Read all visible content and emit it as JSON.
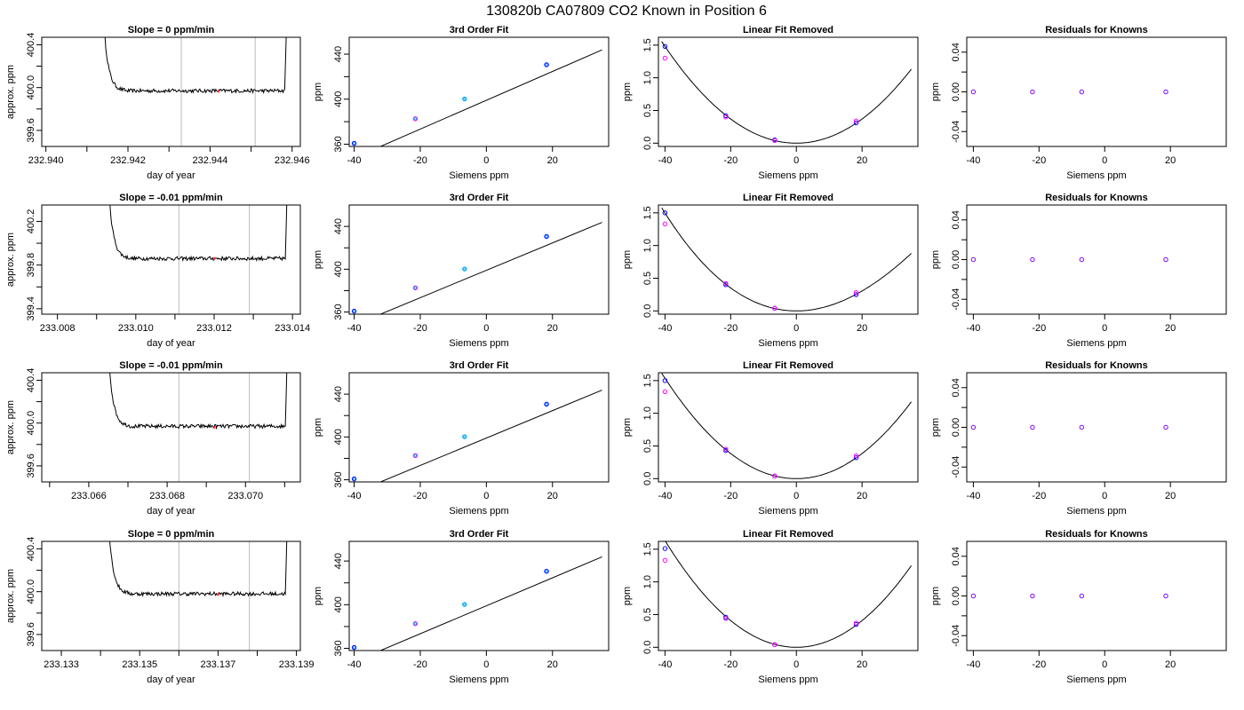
{
  "figure": {
    "title": "130820b      CA07809    CO2 Known in Position  6"
  },
  "chart_data": [
    {
      "row": 1,
      "col": 1,
      "type": "line",
      "title": "Slope =  0  ppm/min",
      "xlabel": "day of year",
      "ylabel": "approx. ppm",
      "xlim": [
        232.9399,
        232.9462
      ],
      "ylim": [
        399.45,
        400.47
      ],
      "xticks": [
        232.94,
        232.941,
        232.942,
        232.943,
        232.944,
        232.945,
        232.946
      ],
      "xticklabels": [
        "232.940",
        "",
        "232.942",
        "",
        "232.944",
        "",
        "232.946"
      ],
      "yticks": [
        399.6,
        399.8,
        400.0,
        400.2,
        400.4
      ],
      "yticklabels": [
        "399.6",
        "",
        "400.0",
        "",
        "400.4"
      ],
      "trace": {
        "x_start": 232.9414,
        "x_end": 232.9459,
        "baseline": 399.97,
        "rise_top": 400.47
      },
      "vlines": [
        232.9433,
        232.9451
      ],
      "marker": {
        "x": 232.9442,
        "y": 399.965,
        "color": "#ff3333"
      }
    },
    {
      "row": 1,
      "col": 2,
      "type": "scatter",
      "title": "3rd Order Fit",
      "xlabel": "Siemens ppm",
      "ylabel": "ppm",
      "xlim": [
        -41.5,
        37
      ],
      "ylim": [
        358,
        455
      ],
      "xticks": [
        -40,
        -20,
        0,
        20
      ],
      "xticklabels": [
        "-40",
        "-20",
        "0",
        "20"
      ],
      "yticks": [
        360,
        380,
        400,
        420,
        440
      ],
      "yticklabels": [
        "360",
        "",
        "400",
        "",
        "440"
      ],
      "points_x": [
        -40.0,
        -21.5,
        -6.6,
        18.2
      ],
      "points_y": [
        360.8,
        382.6,
        400.2,
        430.6
      ],
      "fit": {
        "a0": 399.0,
        "a1": 1.28,
        "x_from": -41,
        "x_to": 35
      },
      "point_colors": [
        "#0000ff",
        "#ff00ff",
        "#00aaff"
      ]
    },
    {
      "row": 1,
      "col": 3,
      "type": "scatter",
      "title": "Linear Fit Removed",
      "xlabel": "Siemens ppm",
      "ylabel": "ppm",
      "xlim": [
        -42,
        37
      ],
      "ylim": [
        -0.05,
        1.62
      ],
      "xticks": [
        -40,
        -20,
        0,
        20
      ],
      "xticklabels": [
        "-40",
        "-20",
        "0",
        "20"
      ],
      "yticks": [
        0.0,
        0.5,
        1.0,
        1.5
      ],
      "yticklabels": [
        "0.0",
        "0.5",
        "1.0",
        "1.5"
      ],
      "points_x": [
        -40.0,
        -21.5,
        -6.6,
        18.2
      ],
      "points_y": [
        1.48,
        0.42,
        0.05,
        0.31
      ],
      "points2_y": [
        1.3,
        0.4,
        0.04,
        0.34
      ],
      "curve": {
        "a": 0.000925,
        "a3": 0.0,
        "x_from": -41,
        "x_to": 35
      }
    },
    {
      "row": 1,
      "col": 4,
      "type": "scatter",
      "title": "Residuals for Knowns",
      "xlabel": "Siemens ppm",
      "ylabel": "ppm",
      "xlim": [
        -42,
        37
      ],
      "ylim": [
        -0.055,
        0.055
      ],
      "xticks": [
        -40,
        -20,
        0,
        20
      ],
      "xticklabels": [
        "-40",
        "-20",
        "0",
        "20"
      ],
      "yticks": [
        -0.04,
        -0.02,
        0.0,
        0.02,
        0.04
      ],
      "yticklabels": [
        "-0.04",
        "",
        "0.00",
        "",
        "0.04"
      ],
      "points_x": [
        -40.0,
        -22.0,
        -7.0,
        18.6
      ],
      "points_y": [
        0,
        0,
        0,
        0
      ]
    },
    {
      "row": 2,
      "col": 1,
      "type": "line",
      "title": "Slope =  -0.01  ppm/min",
      "xlabel": "day of year",
      "ylabel": "approx. ppm",
      "xlim": [
        233.0076,
        233.0142
      ],
      "ylim": [
        399.35,
        400.35
      ],
      "xticks": [
        233.008,
        233.009,
        233.01,
        233.011,
        233.012,
        233.013,
        233.014
      ],
      "xticklabels": [
        "233.008",
        "",
        "233.010",
        "",
        "233.012",
        "",
        "233.014"
      ],
      "yticks": [
        399.4,
        399.6,
        399.8,
        400.0,
        400.2
      ],
      "yticklabels": [
        "399.4",
        "",
        "399.8",
        "",
        "400.2"
      ],
      "trace": {
        "x_start": 233.0093,
        "x_end": 233.0139,
        "baseline": 399.86,
        "rise_top": 400.35
      },
      "vlines": [
        233.0111,
        233.0129
      ],
      "marker": {
        "x": 233.012,
        "y": 399.86,
        "color": "#ff3333"
      }
    },
    {
      "row": 2,
      "col": 2,
      "type": "scatter",
      "title": "3rd Order Fit",
      "xlabel": "Siemens ppm",
      "ylabel": "ppm",
      "xlim": [
        -41.5,
        37
      ],
      "ylim": [
        358,
        460
      ],
      "xticks": [
        -40,
        -20,
        0,
        20
      ],
      "xticklabels": [
        "-40",
        "-20",
        "0",
        "20"
      ],
      "yticks": [
        360,
        380,
        400,
        420,
        440
      ],
      "yticklabels": [
        "360",
        "",
        "400",
        "",
        "440"
      ],
      "points_x": [
        -40.0,
        -21.5,
        -6.6,
        18.2
      ],
      "points_y": [
        360.8,
        382.6,
        400.2,
        430.6
      ],
      "fit": {
        "a0": 399.0,
        "a1": 1.28,
        "x_from": -41,
        "x_to": 35
      },
      "point_colors": [
        "#0000ff",
        "#ff00ff",
        "#00aaff"
      ]
    },
    {
      "row": 2,
      "col": 3,
      "type": "scatter",
      "title": "Linear Fit Removed",
      "xlabel": "Siemens ppm",
      "ylabel": "ppm",
      "xlim": [
        -42,
        37
      ],
      "ylim": [
        -0.05,
        1.62
      ],
      "xticks": [
        -40,
        -20,
        0,
        20
      ],
      "xticklabels": [
        "-40",
        "-20",
        "0",
        "20"
      ],
      "yticks": [
        0.0,
        0.5,
        1.0,
        1.5
      ],
      "yticklabels": [
        "0.0",
        "0.5",
        "1.0",
        "1.5"
      ],
      "points_x": [
        -40.0,
        -21.5,
        -6.6,
        18.2
      ],
      "points_y": [
        1.5,
        0.4,
        0.04,
        0.25
      ],
      "points2_y": [
        1.33,
        0.42,
        0.04,
        0.28
      ],
      "curve": {
        "a": 0.00082,
        "a3": -2.9e-06,
        "x_from": -41,
        "x_to": 35
      }
    },
    {
      "row": 2,
      "col": 4,
      "type": "scatter",
      "title": "Residuals for Knowns",
      "xlabel": "Siemens ppm",
      "ylabel": "ppm",
      "xlim": [
        -42,
        37
      ],
      "ylim": [
        -0.055,
        0.055
      ],
      "xticks": [
        -40,
        -20,
        0,
        20
      ],
      "xticklabels": [
        "-40",
        "-20",
        "0",
        "20"
      ],
      "yticks": [
        -0.04,
        -0.02,
        0.0,
        0.02,
        0.04
      ],
      "yticklabels": [
        "-0.04",
        "",
        "0.00",
        "",
        "0.04"
      ],
      "points_x": [
        -40.0,
        -22.0,
        -7.0,
        18.6
      ],
      "points_y": [
        0,
        0,
        0,
        0
      ]
    },
    {
      "row": 3,
      "col": 1,
      "type": "line",
      "title": "Slope =  -0.01  ppm/min",
      "xlabel": "day of year",
      "ylabel": "approx. ppm",
      "xlim": [
        233.0648,
        233.0714
      ],
      "ylim": [
        399.45,
        400.47
      ],
      "xticks": [
        233.065,
        233.066,
        233.067,
        233.068,
        233.069,
        233.07,
        233.071
      ],
      "xticklabels": [
        "",
        "233.066",
        "",
        "233.068",
        "",
        "233.070",
        ""
      ],
      "yticks": [
        399.6,
        399.8,
        400.0,
        400.2,
        400.4
      ],
      "yticklabels": [
        "399.6",
        "",
        "400.0",
        "",
        "400.4"
      ],
      "trace": {
        "x_start": 233.0665,
        "x_end": 233.0711,
        "baseline": 399.97,
        "rise_top": 400.47
      },
      "vlines": [
        233.0683,
        233.0701
      ],
      "marker": {
        "x": 233.0692,
        "y": 399.96,
        "color": "#ff3333"
      }
    },
    {
      "row": 3,
      "col": 2,
      "type": "scatter",
      "title": "3rd Order Fit",
      "xlabel": "Siemens ppm",
      "ylabel": "ppm",
      "xlim": [
        -41.5,
        37
      ],
      "ylim": [
        358,
        460
      ],
      "xticks": [
        -40,
        -20,
        0,
        20
      ],
      "xticklabels": [
        "-40",
        "-20",
        "0",
        "20"
      ],
      "yticks": [
        360,
        380,
        400,
        420,
        440
      ],
      "yticklabels": [
        "360",
        "",
        "400",
        "",
        "440"
      ],
      "points_x": [
        -40.0,
        -21.5,
        -6.6,
        18.2
      ],
      "points_y": [
        360.8,
        382.6,
        400.2,
        430.6
      ],
      "fit": {
        "a0": 399.0,
        "a1": 1.28,
        "x_from": -41,
        "x_to": 35
      },
      "point_colors": [
        "#0000ff",
        "#ff00ff",
        "#00aaff"
      ]
    },
    {
      "row": 3,
      "col": 3,
      "type": "scatter",
      "title": "Linear Fit Removed",
      "xlabel": "Siemens ppm",
      "ylabel": "ppm",
      "xlim": [
        -42,
        37
      ],
      "ylim": [
        -0.05,
        1.62
      ],
      "xticks": [
        -40,
        -20,
        0,
        20
      ],
      "xticklabels": [
        "-40",
        "-20",
        "0",
        "20"
      ],
      "yticks": [
        0.0,
        0.5,
        1.0,
        1.5
      ],
      "yticklabels": [
        "0.0",
        "0.5",
        "1.0",
        "1.5"
      ],
      "points_x": [
        -40.0,
        -21.5,
        -6.6,
        18.2
      ],
      "points_y": [
        1.5,
        0.43,
        0.04,
        0.32
      ],
      "points2_y": [
        1.33,
        0.45,
        0.04,
        0.35
      ],
      "curve": {
        "a": 0.00096,
        "a3": 0.0,
        "x_from": -41,
        "x_to": 35
      }
    },
    {
      "row": 3,
      "col": 4,
      "type": "scatter",
      "title": "Residuals for Knowns",
      "xlabel": "Siemens ppm",
      "ylabel": "ppm",
      "xlim": [
        -42,
        37
      ],
      "ylim": [
        -0.055,
        0.055
      ],
      "xticks": [
        -40,
        -20,
        0,
        20
      ],
      "xticklabels": [
        "-40",
        "-20",
        "0",
        "20"
      ],
      "yticks": [
        -0.04,
        -0.02,
        0.0,
        0.02,
        0.04
      ],
      "yticklabels": [
        "-0.04",
        "",
        "0.00",
        "",
        "0.04"
      ],
      "points_x": [
        -40.0,
        -22.0,
        -7.0,
        18.6
      ],
      "points_y": [
        0,
        0,
        0,
        0
      ]
    },
    {
      "row": 4,
      "col": 1,
      "type": "line",
      "title": "Slope =  0  ppm/min",
      "xlabel": "day of year",
      "ylabel": "approx. ppm",
      "xlim": [
        233.1325,
        233.1391
      ],
      "ylim": [
        399.45,
        400.47
      ],
      "xticks": [
        233.133,
        233.134,
        233.135,
        233.136,
        233.137,
        233.138,
        233.139
      ],
      "xticklabels": [
        "233.133",
        "",
        "233.135",
        "",
        "233.137",
        "",
        "233.139"
      ],
      "yticks": [
        399.6,
        399.8,
        400.0,
        400.2,
        400.4
      ],
      "yticklabels": [
        "399.6",
        "",
        "400.0",
        "",
        "400.4"
      ],
      "trace": {
        "x_start": 233.1342,
        "x_end": 233.1388,
        "baseline": 399.98,
        "rise_top": 400.47
      },
      "vlines": [
        233.136,
        233.1378
      ],
      "marker": {
        "x": 233.137,
        "y": 399.975,
        "color": "#ff3333"
      }
    },
    {
      "row": 4,
      "col": 2,
      "type": "scatter",
      "title": "3rd Order Fit",
      "xlabel": "Siemens ppm",
      "ylabel": "ppm",
      "xlim": [
        -41.5,
        37
      ],
      "ylim": [
        358,
        458
      ],
      "xticks": [
        -40,
        -20,
        0,
        20
      ],
      "xticklabels": [
        "-40",
        "-20",
        "0",
        "20"
      ],
      "yticks": [
        360,
        380,
        400,
        420,
        440
      ],
      "yticklabels": [
        "360",
        "",
        "400",
        "",
        "440"
      ],
      "points_x": [
        -40.0,
        -21.5,
        -6.6,
        18.2
      ],
      "points_y": [
        360.8,
        382.6,
        400.2,
        430.6
      ],
      "fit": {
        "a0": 399.0,
        "a1": 1.28,
        "x_from": -41,
        "x_to": 35
      },
      "point_colors": [
        "#0000ff",
        "#ff00ff",
        "#00aaff"
      ]
    },
    {
      "row": 4,
      "col": 3,
      "type": "scatter",
      "title": "Linear Fit Removed",
      "xlabel": "Siemens ppm",
      "ylabel": "ppm",
      "xlim": [
        -42,
        37
      ],
      "ylim": [
        -0.05,
        1.62
      ],
      "xticks": [
        -40,
        -20,
        0,
        20
      ],
      "xticklabels": [
        "-40",
        "-20",
        "0",
        "20"
      ],
      "yticks": [
        0.0,
        0.5,
        1.0,
        1.5
      ],
      "yticklabels": [
        "0.0",
        "0.5",
        "1.0",
        "1.5"
      ],
      "points_x": [
        -40.0,
        -21.5,
        -6.6,
        18.2
      ],
      "points_y": [
        1.51,
        0.46,
        0.04,
        0.35
      ],
      "points2_y": [
        1.33,
        0.44,
        0.04,
        0.37
      ],
      "curve": {
        "a": 0.00102,
        "a3": 0.0,
        "x_from": -41,
        "x_to": 35
      }
    },
    {
      "row": 4,
      "col": 4,
      "type": "scatter",
      "title": "Residuals for Knowns",
      "xlabel": "Siemens ppm",
      "ylabel": "ppm",
      "xlim": [
        -42,
        37
      ],
      "ylim": [
        -0.055,
        0.055
      ],
      "xticks": [
        -40,
        -20,
        0,
        20
      ],
      "xticklabels": [
        "-40",
        "-20",
        "0",
        "20"
      ],
      "yticks": [
        -0.04,
        -0.02,
        0.0,
        0.02,
        0.04
      ],
      "yticklabels": [
        "-0.04",
        "",
        "0.00",
        "",
        "0.04"
      ],
      "points_x": [
        -40.0,
        -22.0,
        -7.0,
        18.6
      ],
      "points_y": [
        0,
        0,
        0,
        0
      ]
    }
  ],
  "colors": {
    "line": "#000000",
    "vline": "#bbbbbb",
    "blue": "#0000ff",
    "magenta": "#ff00ff",
    "cyan": "#00aaff",
    "purple": "#7f00ff",
    "red": "#ff3333"
  }
}
